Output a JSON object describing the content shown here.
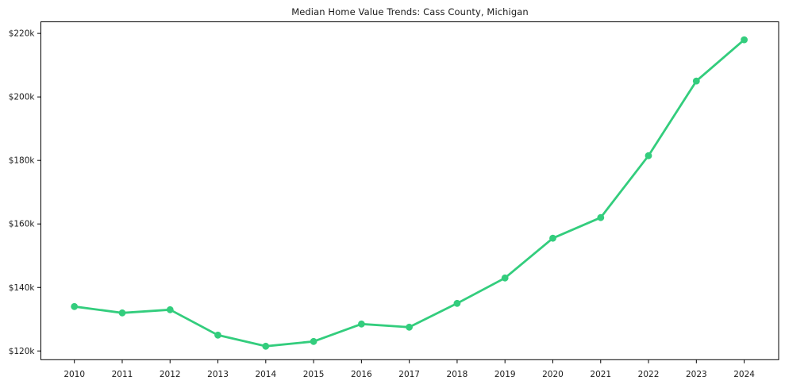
{
  "chart_data": {
    "type": "line",
    "title": "Median Home Value Trends: Cass County, Michigan",
    "xlabel": "",
    "ylabel": "",
    "x": [
      2010,
      2011,
      2012,
      2013,
      2014,
      2015,
      2016,
      2017,
      2018,
      2019,
      2020,
      2021,
      2022,
      2023,
      2024
    ],
    "x_tick_labels": [
      "2010",
      "2011",
      "2012",
      "2013",
      "2014",
      "2015",
      "2016",
      "2017",
      "2018",
      "2019",
      "2020",
      "2021",
      "2022",
      "2023",
      "2024"
    ],
    "values": [
      134000,
      132000,
      133000,
      125000,
      121500,
      123000,
      128500,
      127500,
      135000,
      143000,
      155500,
      162000,
      181500,
      205000,
      218000
    ],
    "y_ticks": [
      120000,
      140000,
      160000,
      180000,
      200000,
      220000
    ],
    "y_tick_labels": [
      "$120k",
      "$140k",
      "$160k",
      "$180k",
      "$200k",
      "$220k"
    ],
    "xlim": [
      2009.3,
      2024.72
    ],
    "ylim": [
      117250,
      223650
    ],
    "grid": false,
    "legend": false,
    "marker": "circle",
    "line_color": "#33cd7d",
    "marker_color": "#33cd7d",
    "axis_color": "#000000",
    "tick_text_color": "#1a1a1a"
  }
}
